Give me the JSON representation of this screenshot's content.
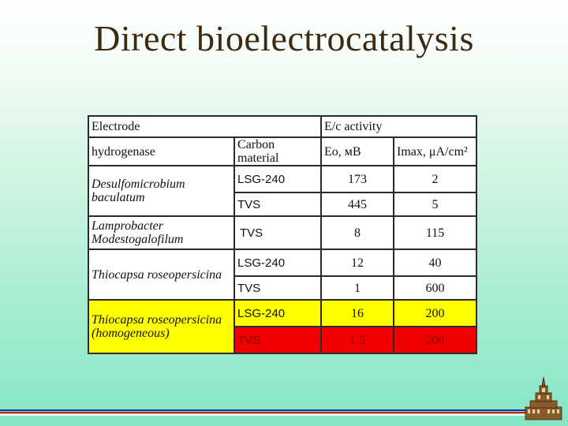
{
  "slide": {
    "title": "Direct bioelectrocatalysis"
  },
  "table": {
    "header1": {
      "electrode": "Electrode",
      "activity": "E/c activity"
    },
    "header2": {
      "hydrogenase": "hydrogenase",
      "carbon_material": "Carbon material",
      "e0": "Eo, мВ",
      "imax": "Imax, μA/cm²"
    },
    "rows": [
      {
        "organism": "Desulfomicrobium baculatum",
        "material": "LSG-240",
        "e0": "173",
        "imax": "2"
      },
      {
        "organism": "",
        "material": "TVS",
        "e0": "445",
        "imax": "5"
      },
      {
        "organism": "Lamprobacter Modestogalofilum",
        "material": "TVS",
        "e0": "8",
        "imax": "115"
      },
      {
        "organism": "Thiocapsa roseopersicina",
        "material": "LSG-240",
        "e0": "12",
        "imax": "40"
      },
      {
        "organism": "",
        "material": "TVS",
        "e0": "1",
        "imax": "600"
      },
      {
        "organism": "Thiocapsa roseopersicina (homogeneous)",
        "material": "LSG-240",
        "e0": "16",
        "imax": "200"
      },
      {
        "organism": "",
        "material": "TVS",
        "e0": "1.5",
        "imax": "200"
      }
    ]
  },
  "colors": {
    "highlight_yellow": "#ffff00",
    "highlight_red": "#f00000",
    "title_color": "#3d2a12",
    "rule_blue": "#1a2a9a",
    "rule_red": "#c81e1e"
  },
  "icons": {
    "logo": "university-building-icon"
  }
}
